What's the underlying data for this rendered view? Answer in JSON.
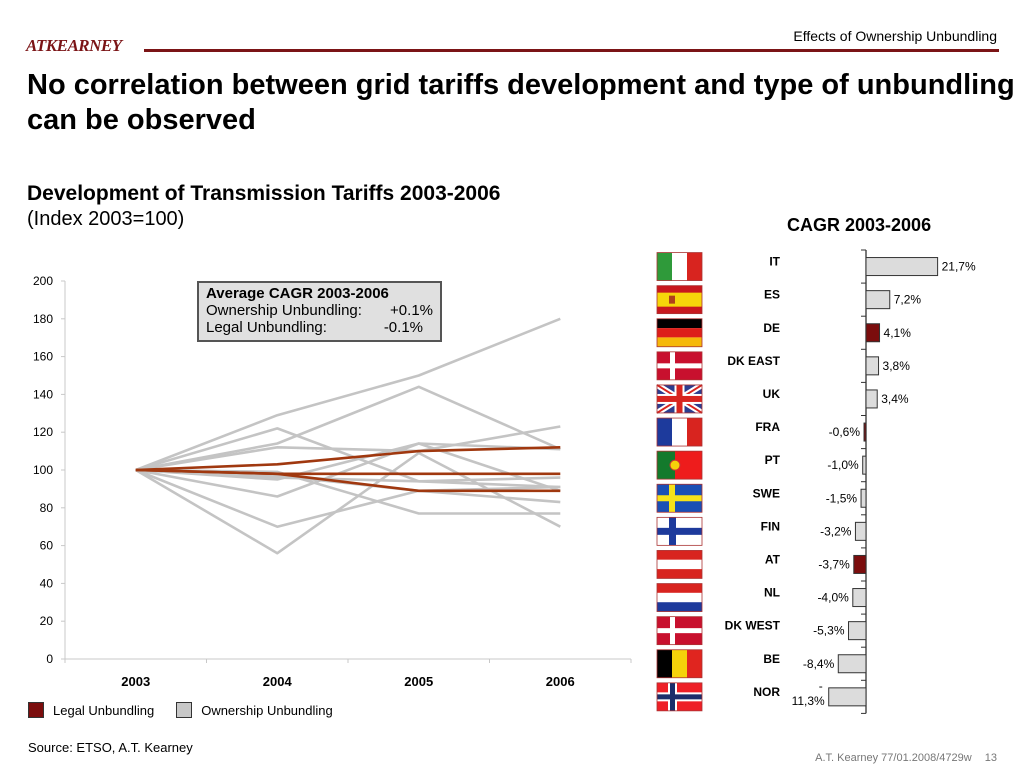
{
  "header": {
    "logo": "ATKEARNEY",
    "section_label": "Effects of Ownership Unbundling",
    "title": "No correlation between grid tariffs development and type of unbundling can be observed",
    "brand_color": "#7b1416"
  },
  "callout": {
    "title": "Average CAGR 2003-2006",
    "rows": [
      {
        "label": "Ownership Unbundling:",
        "value": "+0.1%"
      },
      {
        "label": "Legal Unbundling:",
        "value": "-0.1%"
      }
    ]
  },
  "legend": [
    {
      "label": "Legal Unbundling",
      "color": "#7b0d0d"
    },
    {
      "label": "Ownership Unbundling",
      "color": "#c8c8c8"
    }
  ],
  "source": "Source: ETSO, A.T. Kearney",
  "footer": {
    "ref": "A.T. Kearney 77/01.2008/4729w",
    "page": "13"
  },
  "chart_data": [
    {
      "type": "line",
      "title": "Development of Transmission Tariffs 2003-2006",
      "subtitle": "(Index 2003=100)",
      "xlabel": "",
      "ylabel": "",
      "x": [
        "2003",
        "2004",
        "2005",
        "2006"
      ],
      "ylim": [
        0,
        200
      ],
      "yticks": [
        0,
        20,
        40,
        60,
        80,
        100,
        120,
        140,
        160,
        180,
        200
      ],
      "grid": false,
      "legend_position": "bottom-left",
      "series_colors": {
        "Legal Unbundling": "#a0380f",
        "Ownership Unbundling": "#c4c4c4"
      },
      "series": [
        {
          "name": "Ownership Unbundling",
          "values": [
            100,
            129,
            150,
            180
          ]
        },
        {
          "name": "Ownership Unbundling",
          "values": [
            100,
            114,
            144,
            111
          ]
        },
        {
          "name": "Ownership Unbundling",
          "values": [
            100,
            122,
            94,
            91
          ]
        },
        {
          "name": "Ownership Unbundling",
          "values": [
            100,
            112,
            110,
            123
          ]
        },
        {
          "name": "Ownership Unbundling",
          "values": [
            100,
            95,
            114,
            89
          ]
        },
        {
          "name": "Ownership Unbundling",
          "values": [
            100,
            86,
            114,
            111
          ]
        },
        {
          "name": "Ownership Unbundling",
          "values": [
            100,
            96,
            94,
            96
          ]
        },
        {
          "name": "Ownership Unbundling",
          "values": [
            100,
            99,
            77,
            77
          ]
        },
        {
          "name": "Ownership Unbundling",
          "values": [
            100,
            97,
            89,
            83
          ]
        },
        {
          "name": "Ownership Unbundling",
          "values": [
            100,
            70,
            89,
            91
          ]
        },
        {
          "name": "Ownership Unbundling",
          "values": [
            100,
            56,
            109,
            70
          ]
        },
        {
          "name": "Legal Unbundling",
          "values": [
            100,
            103,
            110,
            112
          ]
        },
        {
          "name": "Legal Unbundling",
          "values": [
            100,
            98,
            98,
            98
          ]
        },
        {
          "name": "Legal Unbundling",
          "values": [
            100,
            98,
            89,
            89
          ]
        }
      ]
    },
    {
      "type": "bar",
      "orientation": "horizontal",
      "title": "CAGR 2003-2006",
      "categories": [
        "IT",
        "ES",
        "DE",
        "DK EAST",
        "UK",
        "FRA",
        "PT",
        "SWE",
        "FIN",
        "AT",
        "NL",
        "DK WEST",
        "BE",
        "NOR"
      ],
      "values": [
        21.7,
        7.2,
        4.1,
        3.8,
        3.4,
        -0.6,
        -1.0,
        -1.5,
        -3.2,
        -3.7,
        -4.0,
        -5.3,
        -8.4,
        -11.3
      ],
      "labels": [
        "21,7%",
        "7,2%",
        "4,1%",
        "3,8%",
        "3,4%",
        "-0,6%",
        "-1,0%",
        "-1,5%",
        "-3,2%",
        "-3,7%",
        "-4,0%",
        "-5,3%",
        "-8,4%",
        "-\n11,3%"
      ],
      "unbundling_type": [
        "ownership",
        "ownership",
        "legal",
        "ownership",
        "ownership",
        "legal",
        "ownership",
        "ownership",
        "ownership",
        "legal",
        "ownership",
        "ownership",
        "ownership",
        "ownership"
      ],
      "flags": [
        "italy-flag",
        "spain-flag",
        "germany-flag",
        "denmark-flag",
        "uk-flag",
        "france-flag",
        "portugal-flag",
        "sweden-flag",
        "finland-flag",
        "austria-flag",
        "netherlands-flag",
        "denmark-flag",
        "belgium-flag",
        "norway-flag"
      ],
      "colors": {
        "legal": "#7b0d0d",
        "ownership": "#dcdcdc"
      }
    }
  ]
}
